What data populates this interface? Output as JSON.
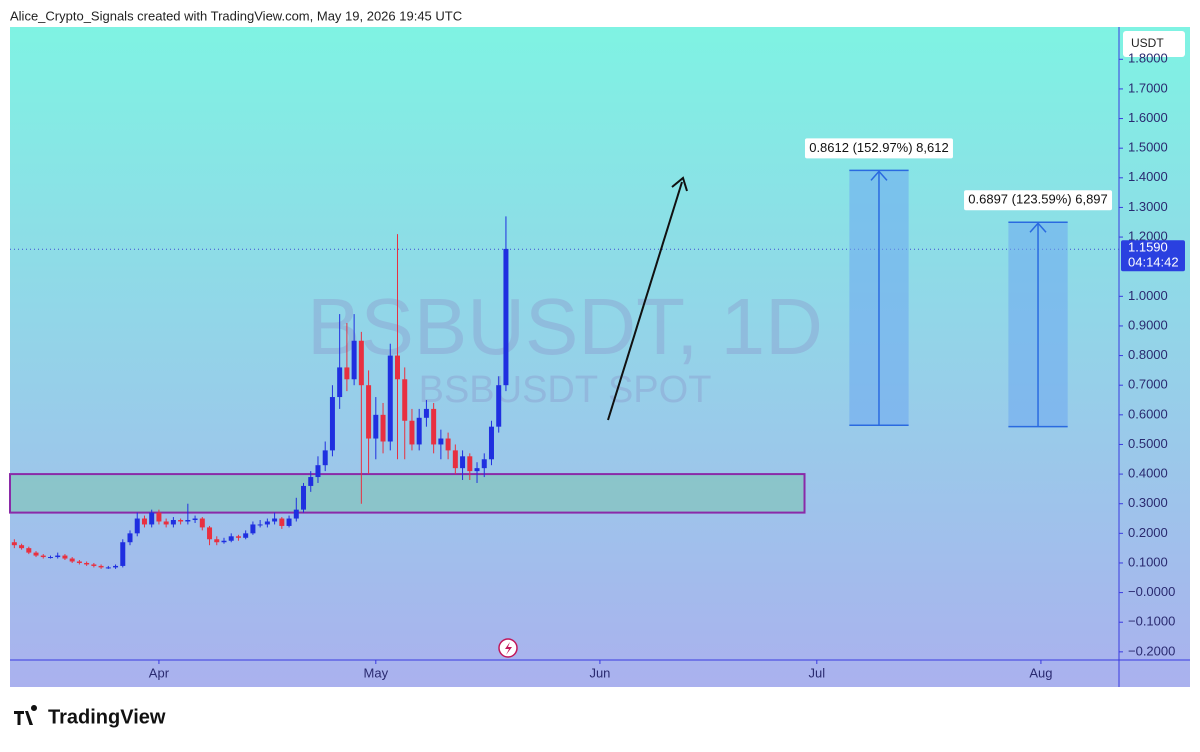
{
  "header": "Alice_Crypto_Signals created with TradingView.com, May 19, 2026 19:45 UTC",
  "footer": "TradingView",
  "chart_data": {
    "type": "candlestick",
    "watermark": "BSBUSDT, 1D",
    "watermark_sub": "BSBUSDT SPOT",
    "currency": "USDT",
    "up_color": "#1f2fe0",
    "down_color": "#e83040",
    "x": [
      -20,
      -19,
      -18,
      -17,
      -16,
      -15,
      -14,
      -13,
      -12,
      -11,
      -10,
      -9,
      -8,
      -7,
      -6,
      -5,
      -4,
      -3,
      -2,
      -1,
      0,
      1,
      2,
      3,
      4,
      5,
      6,
      7,
      8,
      9,
      10,
      11,
      12,
      13,
      14,
      15,
      16,
      17,
      18,
      19,
      20,
      21,
      22,
      23,
      24,
      25,
      26,
      27,
      28,
      29,
      30,
      31,
      32,
      33,
      34,
      35,
      36,
      37,
      38,
      39,
      40,
      41,
      42,
      43,
      44,
      45,
      46,
      47,
      48
    ],
    "open": [
      0.17,
      0.16,
      0.15,
      0.135,
      0.125,
      0.12,
      0.12,
      0.125,
      0.115,
      0.105,
      0.1,
      0.095,
      0.09,
      0.085,
      0.085,
      0.09,
      0.17,
      0.2,
      0.25,
      0.23,
      0.27,
      0.24,
      0.23,
      0.245,
      0.24,
      0.245,
      0.25,
      0.22,
      0.18,
      0.17,
      0.175,
      0.19,
      0.185,
      0.2,
      0.23,
      0.23,
      0.24,
      0.25,
      0.225,
      0.25,
      0.28,
      0.36,
      0.39,
      0.43,
      0.48,
      0.66,
      0.76,
      0.72,
      0.85,
      0.7,
      0.52,
      0.6,
      0.51,
      0.8,
      0.72,
      0.58,
      0.5,
      0.59,
      0.62,
      0.5,
      0.52,
      0.48,
      0.42,
      0.46,
      0.41,
      0.42,
      0.45,
      0.56,
      0.7
    ],
    "high": [
      0.18,
      0.165,
      0.155,
      0.14,
      0.13,
      0.125,
      0.135,
      0.13,
      0.12,
      0.11,
      0.105,
      0.1,
      0.095,
      0.09,
      0.095,
      0.18,
      0.21,
      0.27,
      0.26,
      0.28,
      0.28,
      0.25,
      0.255,
      0.25,
      0.3,
      0.26,
      0.255,
      0.225,
      0.19,
      0.185,
      0.2,
      0.195,
      0.21,
      0.24,
      0.245,
      0.25,
      0.27,
      0.255,
      0.26,
      0.32,
      0.37,
      0.41,
      0.46,
      0.51,
      0.7,
      0.94,
      0.91,
      0.94,
      0.88,
      0.75,
      0.66,
      0.64,
      0.84,
      1.21,
      0.76,
      0.62,
      0.62,
      0.65,
      0.64,
      0.55,
      0.54,
      0.5,
      0.48,
      0.47,
      0.44,
      0.47,
      0.58,
      0.73,
      1.27
    ],
    "low": [
      0.15,
      0.145,
      0.13,
      0.12,
      0.115,
      0.115,
      0.115,
      0.11,
      0.1,
      0.095,
      0.09,
      0.085,
      0.08,
      0.08,
      0.08,
      0.085,
      0.16,
      0.19,
      0.22,
      0.22,
      0.23,
      0.22,
      0.22,
      0.23,
      0.23,
      0.235,
      0.21,
      0.16,
      0.16,
      0.165,
      0.17,
      0.175,
      0.18,
      0.195,
      0.22,
      0.22,
      0.23,
      0.215,
      0.22,
      0.24,
      0.27,
      0.34,
      0.37,
      0.41,
      0.46,
      0.62,
      0.68,
      0.7,
      0.3,
      0.4,
      0.45,
      0.47,
      0.48,
      0.45,
      0.45,
      0.48,
      0.48,
      0.56,
      0.47,
      0.45,
      0.45,
      0.4,
      0.38,
      0.38,
      0.37,
      0.39,
      0.43,
      0.54,
      0.68
    ],
    "close": [
      0.16,
      0.15,
      0.135,
      0.125,
      0.12,
      0.12,
      0.125,
      0.115,
      0.105,
      0.1,
      0.095,
      0.09,
      0.085,
      0.085,
      0.09,
      0.17,
      0.2,
      0.25,
      0.23,
      0.27,
      0.24,
      0.23,
      0.245,
      0.24,
      0.245,
      0.25,
      0.22,
      0.18,
      0.17,
      0.175,
      0.19,
      0.185,
      0.2,
      0.23,
      0.23,
      0.24,
      0.25,
      0.225,
      0.25,
      0.28,
      0.36,
      0.39,
      0.43,
      0.48,
      0.66,
      0.76,
      0.72,
      0.85,
      0.7,
      0.52,
      0.6,
      0.51,
      0.8,
      0.72,
      0.58,
      0.5,
      0.59,
      0.62,
      0.5,
      0.52,
      0.48,
      0.42,
      0.46,
      0.41,
      0.42,
      0.45,
      0.56,
      0.7,
      1.16
    ],
    "xlim": [
      -20.6,
      132.8
    ],
    "xticks": [
      {
        "value": 0,
        "label": "Apr"
      },
      {
        "value": 30,
        "label": "May"
      },
      {
        "value": 61,
        "label": "Jun"
      },
      {
        "value": 91,
        "label": "Jul"
      },
      {
        "value": 122,
        "label": "Aug"
      }
    ],
    "ylim": [
      -0.2275,
      1.909
    ],
    "yticks": [
      {
        "value": 1.8,
        "label": "1.8000"
      },
      {
        "value": 1.7,
        "label": "1.7000"
      },
      {
        "value": 1.6,
        "label": "1.6000"
      },
      {
        "value": 1.5,
        "label": "1.5000"
      },
      {
        "value": 1.4,
        "label": "1.4000"
      },
      {
        "value": 1.3,
        "label": "1.3000"
      },
      {
        "value": 1.2,
        "label": "1.2000"
      },
      {
        "value": 1.0,
        "label": "1.0000"
      },
      {
        "value": 0.9,
        "label": "0.9000"
      },
      {
        "value": 0.8,
        "label": "0.8000"
      },
      {
        "value": 0.7,
        "label": "0.7000"
      },
      {
        "value": 0.6,
        "label": "0.6000"
      },
      {
        "value": 0.5,
        "label": "0.5000"
      },
      {
        "value": 0.4,
        "label": "0.4000"
      },
      {
        "value": 0.3,
        "label": "0.3000"
      },
      {
        "value": 0.2,
        "label": "0.2000"
      },
      {
        "value": 0.1,
        "label": "0.1000"
      },
      {
        "value": 0,
        "label": "−0.0000"
      },
      {
        "value": -0.1,
        "label": "−0.1000"
      },
      {
        "value": -0.2,
        "label": "−0.2000"
      }
    ],
    "last_price": {
      "value": 1.159,
      "label": "1.1590",
      "countdown": "04:14:42"
    },
    "zone": {
      "from": 0.27,
      "to": 0.4,
      "x": [
        -20.6,
        89.3
      ]
    },
    "measurements": [
      {
        "label": "0.8612 (152.97%) 8,612",
        "from": 0.565,
        "to": 1.425,
        "x": [
          95.5,
          103.7
        ]
      },
      {
        "label": "0.6897 (123.59%) 6,897",
        "from": 0.56,
        "to": 1.25,
        "x": [
          117.5,
          125.7
        ]
      }
    ]
  }
}
